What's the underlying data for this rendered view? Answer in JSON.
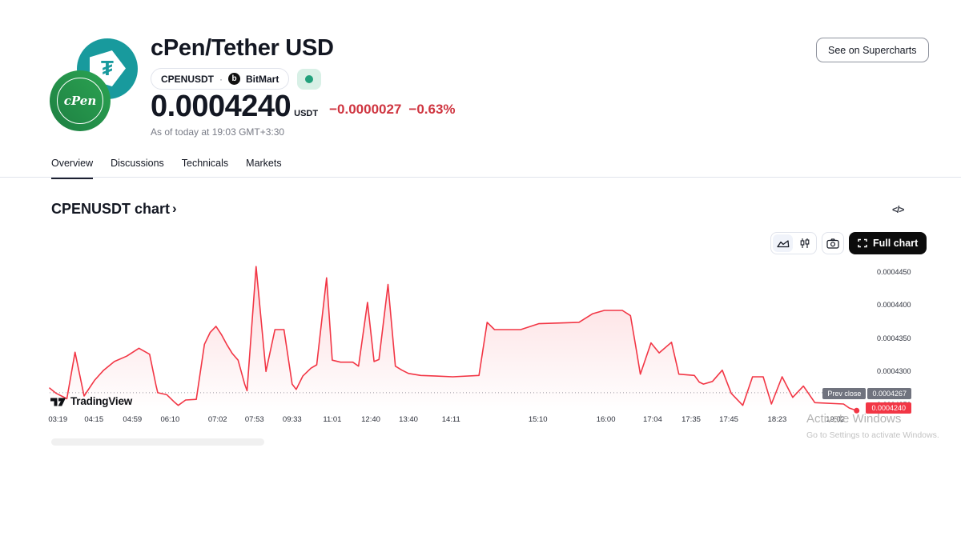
{
  "header": {
    "title": "cPen/Tether USD",
    "symbol": "CPENUSDT",
    "separator": "·",
    "exchange": "BitMart",
    "exchange_icon_letter": "b",
    "price": "0.0004240",
    "currency": "USDT",
    "change_abs": "−0.0000027",
    "change_pct": "−0.63%",
    "as_of": "As of today at 19:03 GMT+3:30",
    "supercharts_button": "See on Supercharts",
    "tether_symbol": "₮",
    "coin_label": "cPen"
  },
  "tabs": [
    {
      "label": "Overview",
      "active": true
    },
    {
      "label": "Discussions",
      "active": false
    },
    {
      "label": "Technicals",
      "active": false
    },
    {
      "label": "Markets",
      "active": false
    }
  ],
  "section": {
    "heading": "CPENUSDT chart",
    "chevron": "›",
    "code_icon": "</>"
  },
  "toolbar": {
    "full_chart_label": "Full chart"
  },
  "attribution": {
    "brand": "TradingView"
  },
  "watermark": {
    "line1": "Activate Windows",
    "line2": "Go to Settings to activate Windows."
  },
  "chart_data": {
    "type": "area",
    "title": "CPENUSDT intraday price",
    "line_color": "#F23645",
    "fill_top": "rgba(242,54,69,0.18)",
    "fill_bottom": "rgba(242,54,69,0.0)",
    "value_unit": "USDT",
    "value_scale": 1e-07,
    "ylim": [
      0.000424,
      0.000446
    ],
    "grid": "prev-close dotted line only",
    "legend_position": "none",
    "prev_close": {
      "label": "Prev close",
      "value": "0.0004267",
      "v": 4267
    },
    "last_price": {
      "value": "0.0004240",
      "v": 4240
    },
    "y_ticks": [
      {
        "label": "0.0004450",
        "v": 4450
      },
      {
        "label": "0.0004400",
        "v": 4400
      },
      {
        "label": "0.0004350",
        "v": 4350
      },
      {
        "label": "0.0004300",
        "v": 4300
      },
      {
        "label": "0.0004250",
        "v": 4250
      }
    ],
    "x_ticks": [
      {
        "label": "03:19",
        "f": 0.01
      },
      {
        "label": "04:15",
        "f": 0.054
      },
      {
        "label": "04:59",
        "f": 0.101
      },
      {
        "label": "06:10",
        "f": 0.147
      },
      {
        "label": "07:02",
        "f": 0.205
      },
      {
        "label": "07:53",
        "f": 0.25
      },
      {
        "label": "09:33",
        "f": 0.296
      },
      {
        "label": "11:01",
        "f": 0.345
      },
      {
        "label": "12:40",
        "f": 0.392
      },
      {
        "label": "13:40",
        "f": 0.438
      },
      {
        "label": "14:11",
        "f": 0.49
      },
      {
        "label": "15:10",
        "f": 0.596
      },
      {
        "label": "16:00",
        "f": 0.679
      },
      {
        "label": "17:04",
        "f": 0.736
      },
      {
        "label": "17:35",
        "f": 0.783
      },
      {
        "label": "17:45",
        "f": 0.829
      },
      {
        "label": "18:23",
        "f": 0.888
      },
      {
        "label": "19:02",
        "f": 0.959
      }
    ],
    "points": [
      [
        0.0,
        4274
      ],
      [
        0.008,
        4266
      ],
      [
        0.021,
        4258
      ],
      [
        0.031,
        4328
      ],
      [
        0.042,
        4262
      ],
      [
        0.055,
        4286
      ],
      [
        0.066,
        4301
      ],
      [
        0.079,
        4314
      ],
      [
        0.094,
        4322
      ],
      [
        0.109,
        4334
      ],
      [
        0.122,
        4325
      ],
      [
        0.13,
        4277
      ],
      [
        0.132,
        4267
      ],
      [
        0.143,
        4264
      ],
      [
        0.153,
        4252
      ],
      [
        0.157,
        4248
      ],
      [
        0.166,
        4256
      ],
      [
        0.179,
        4257
      ],
      [
        0.189,
        4340
      ],
      [
        0.196,
        4358
      ],
      [
        0.203,
        4367
      ],
      [
        0.21,
        4354
      ],
      [
        0.216,
        4340
      ],
      [
        0.223,
        4326
      ],
      [
        0.23,
        4316
      ],
      [
        0.238,
        4280
      ],
      [
        0.241,
        4270
      ],
      [
        0.252,
        4457
      ],
      [
        0.264,
        4299
      ],
      [
        0.275,
        4362
      ],
      [
        0.286,
        4362
      ],
      [
        0.296,
        4280
      ],
      [
        0.301,
        4272
      ],
      [
        0.309,
        4292
      ],
      [
        0.319,
        4304
      ],
      [
        0.326,
        4309
      ],
      [
        0.338,
        4440
      ],
      [
        0.345,
        4316
      ],
      [
        0.355,
        4313
      ],
      [
        0.37,
        4313
      ],
      [
        0.377,
        4307
      ],
      [
        0.388,
        4403
      ],
      [
        0.396,
        4314
      ],
      [
        0.402,
        4317
      ],
      [
        0.413,
        4430
      ],
      [
        0.422,
        4307
      ],
      [
        0.43,
        4301
      ],
      [
        0.438,
        4296
      ],
      [
        0.453,
        4293
      ],
      [
        0.472,
        4292
      ],
      [
        0.492,
        4291
      ],
      [
        0.524,
        4293
      ],
      [
        0.534,
        4373
      ],
      [
        0.543,
        4362
      ],
      [
        0.575,
        4362
      ],
      [
        0.597,
        4371
      ],
      [
        0.624,
        4372
      ],
      [
        0.646,
        4373
      ],
      [
        0.663,
        4386
      ],
      [
        0.677,
        4391
      ],
      [
        0.699,
        4391
      ],
      [
        0.709,
        4383
      ],
      [
        0.715,
        4340
      ],
      [
        0.721,
        4295
      ],
      [
        0.734,
        4342
      ],
      [
        0.744,
        4327
      ],
      [
        0.759,
        4343
      ],
      [
        0.768,
        4295
      ],
      [
        0.787,
        4293
      ],
      [
        0.793,
        4283
      ],
      [
        0.798,
        4280
      ],
      [
        0.809,
        4284
      ],
      [
        0.821,
        4301
      ],
      [
        0.832,
        4266
      ],
      [
        0.846,
        4248
      ],
      [
        0.858,
        4291
      ],
      [
        0.871,
        4291
      ],
      [
        0.881,
        4250
      ],
      [
        0.894,
        4291
      ],
      [
        0.907,
        4260
      ],
      [
        0.92,
        4277
      ],
      [
        0.934,
        4252
      ],
      [
        0.969,
        4250
      ],
      [
        0.976,
        4244
      ],
      [
        0.985,
        4240
      ]
    ]
  }
}
